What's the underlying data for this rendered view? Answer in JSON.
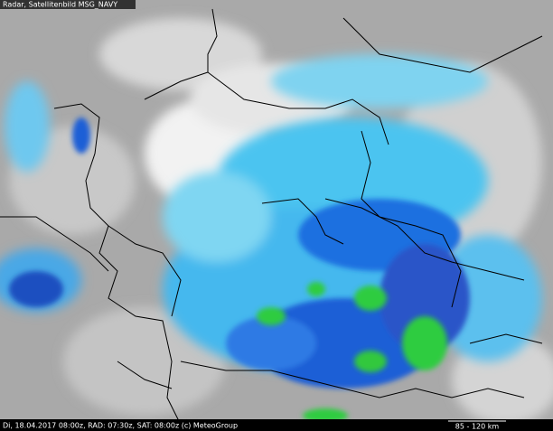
{
  "header": {
    "title": "Radar, Satellitenbild MSG_NAVY"
  },
  "footer": {
    "caption": "Di, 18.04.2017 08:00z, RAD: 07:30z, SAT: 08:00z (c) MeteoGroup",
    "scale": "85 - 120 km"
  }
}
